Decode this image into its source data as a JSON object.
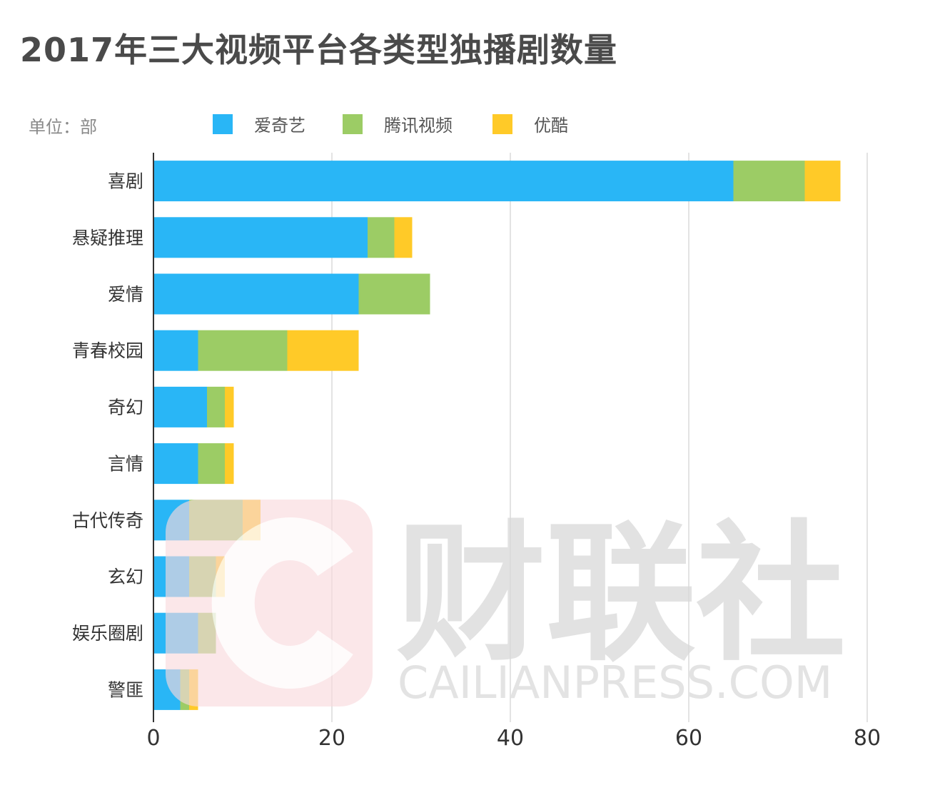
{
  "title": "2017年三大视频平台各类型独播剧数量",
  "unit_label": "单位：部",
  "watermark": {
    "brand": "财联社",
    "domain": "CAILIANPRESS.COM"
  },
  "colors": {
    "iqiyi": "#29b6f6",
    "tencent": "#9ccc65",
    "youku": "#ffca28",
    "axis": "#333333",
    "grid": "#e3e3e3",
    "tick_text": "#333333",
    "category_text": "#333333"
  },
  "chart_data": {
    "type": "bar",
    "orientation": "horizontal",
    "stacked": true,
    "title": "2017年三大视频平台各类型独播剧数量",
    "unit": "单位：部",
    "categories": [
      "喜剧",
      "悬疑推理",
      "爱情",
      "青春校园",
      "奇幻",
      "言情",
      "古代传奇",
      "玄幻",
      "娱乐圈剧",
      "警匪"
    ],
    "series": [
      {
        "name": "爱奇艺",
        "color": "#29b6f6",
        "values": [
          65,
          24,
          23,
          5,
          6,
          5,
          4,
          4,
          5,
          3
        ]
      },
      {
        "name": "腾讯视频",
        "color": "#9ccc65",
        "values": [
          8,
          3,
          8,
          10,
          2,
          3,
          6,
          3,
          2,
          1
        ]
      },
      {
        "name": "优酷",
        "color": "#ffca28",
        "values": [
          4,
          2,
          0,
          8,
          1,
          1,
          2,
          1,
          0,
          1
        ]
      }
    ],
    "xlim": [
      0,
      80
    ],
    "xticks": [
      0,
      20,
      40,
      60,
      80
    ],
    "grid": "vertical",
    "legend_position": "top"
  }
}
